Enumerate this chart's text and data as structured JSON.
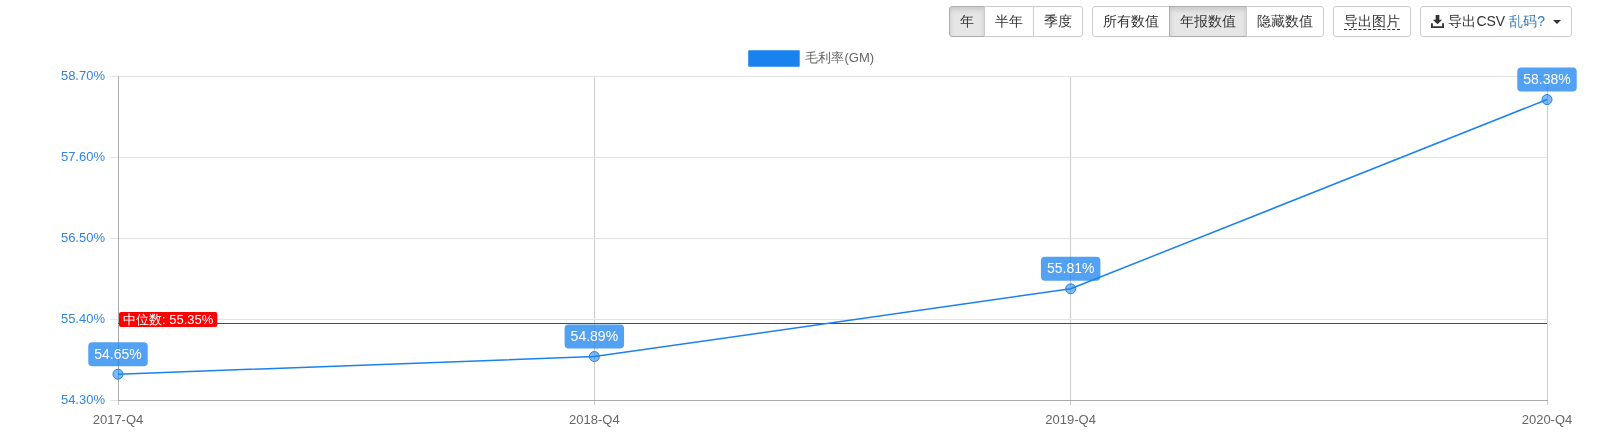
{
  "chart_data": {
    "type": "line",
    "categories": [
      "2017-Q4",
      "2018-Q4",
      "2019-Q4",
      "2020-Q4"
    ],
    "series": [
      {
        "name": "毛利率(GM)",
        "color": "#1a82ee",
        "values": [
          54.65,
          54.89,
          55.81,
          58.38
        ],
        "value_labels": [
          "54.65%",
          "54.89%",
          "55.81%",
          "58.38%"
        ]
      }
    ],
    "ylim": [
      54.3,
      58.7
    ],
    "yticks": [
      {
        "value": 54.3,
        "label": "54.30%"
      },
      {
        "value": 55.4,
        "label": "55.40%"
      },
      {
        "value": 56.5,
        "label": "56.50%"
      },
      {
        "value": 57.6,
        "label": "57.60%"
      },
      {
        "value": 58.7,
        "label": "58.70%"
      }
    ],
    "ref_lines": [
      {
        "axis": "y",
        "value": 55.35,
        "label": "中位数: 55.35%",
        "color": "#ff0000"
      }
    ],
    "annotations": [
      "年",
      "半年",
      "季度",
      "所有数值",
      "年报数值",
      "隐藏数值",
      "导出图片",
      "导出CSV",
      "乱码?"
    ],
    "grid": true,
    "legend": "top",
    "marker": "circle",
    "line_style": "solid"
  }
}
